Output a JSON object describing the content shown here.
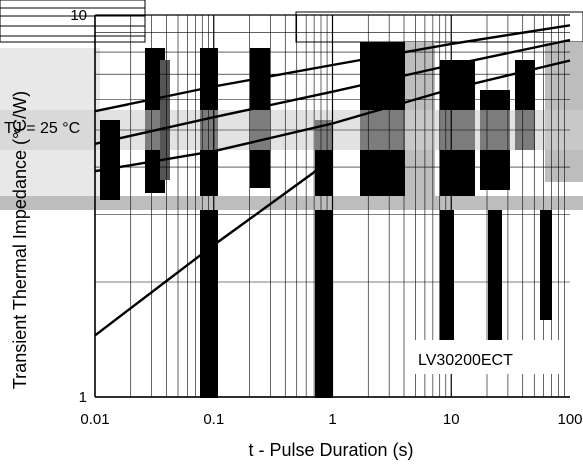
{
  "chart_data": {
    "type": "line",
    "xlabel": "t - Pulse Duration (s)",
    "ylabel": "Transient Thermal Impedance (°C/W)",
    "x_scale": "log",
    "y_scale": "log",
    "xlim": [
      0.01,
      100
    ],
    "ylim": [
      1,
      10
    ],
    "x_ticks": [
      "0.01",
      "0.1",
      "1",
      "10",
      "100"
    ],
    "y_ticks": [
      "1",
      "10"
    ],
    "grid": true,
    "annotations": [
      {
        "text": "TJ = 25 °C",
        "x": 0.01,
        "y": 6.0
      },
      {
        "text": "LV30200ECT",
        "x": 25,
        "y": 1.4
      }
    ],
    "series": [
      {
        "values": [
          [
            0.01,
            1.45
          ],
          [
            0.1,
            2.5
          ],
          [
            1,
            4.2
          ]
        ]
      },
      {
        "values": [
          [
            0.01,
            3.9
          ],
          [
            0.1,
            4.4
          ],
          [
            1,
            5.2
          ],
          [
            10,
            6.4
          ],
          [
            100,
            7.6
          ]
        ]
      },
      {
        "values": [
          [
            0.01,
            4.6
          ],
          [
            0.1,
            5.4
          ],
          [
            1,
            6.3
          ],
          [
            10,
            7.4
          ],
          [
            100,
            8.6
          ]
        ]
      },
      {
        "values": [
          [
            0.01,
            5.6
          ],
          [
            0.1,
            6.5
          ],
          [
            1,
            7.4
          ],
          [
            10,
            8.4
          ],
          [
            100,
            9.4
          ]
        ]
      }
    ]
  }
}
